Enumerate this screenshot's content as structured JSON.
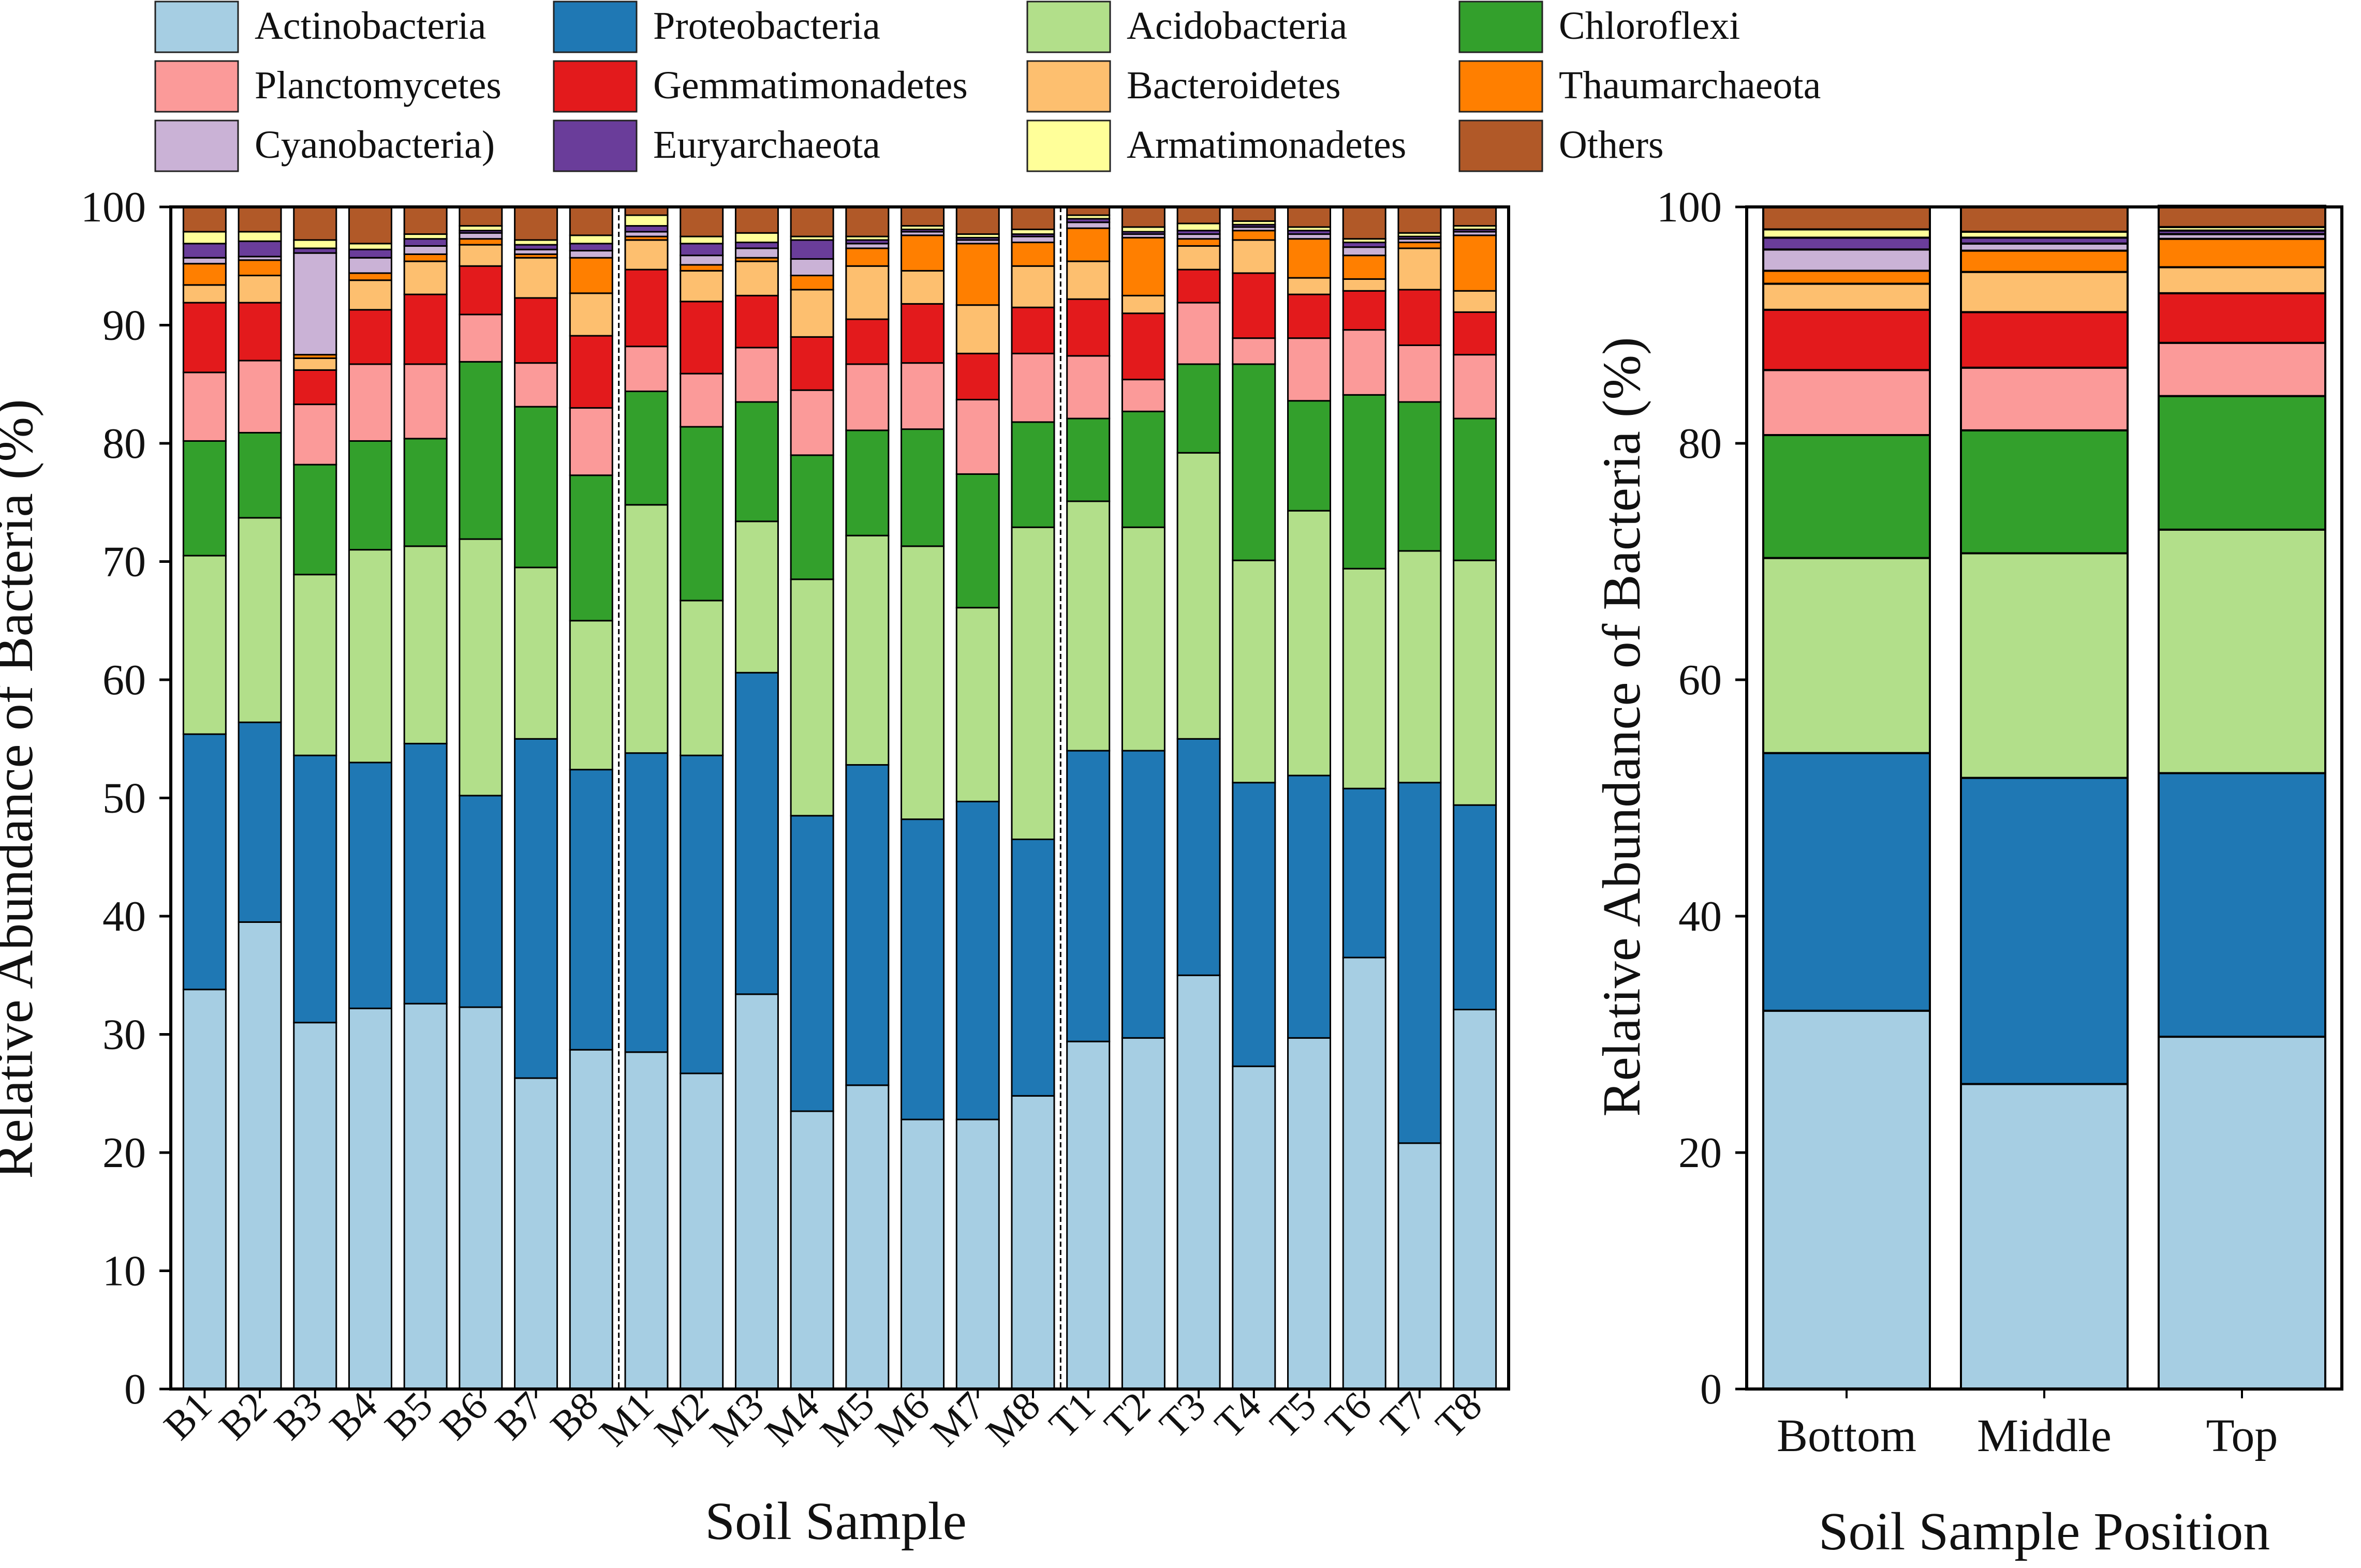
{
  "legend": [
    {
      "name": "Actinobacteria",
      "color": "#a6cee3"
    },
    {
      "name": "Proteobacteria",
      "color": "#1f78b4"
    },
    {
      "name": "Acidobacteria",
      "color": "#b2df8a"
    },
    {
      "name": "Chloroflexi",
      "color": "#33a02c"
    },
    {
      "name": "Planctomycetes",
      "color": "#fb9a99"
    },
    {
      "name": "Gemmatimonadetes",
      "color": "#e31a1c"
    },
    {
      "name": "Bacteroidetes",
      "color": "#fdbf6f"
    },
    {
      "name": "Thaumarchaeota",
      "color": "#ff7f00"
    },
    {
      "name": "Cyanobacteria)",
      "color": "#cab2d6"
    },
    {
      "name": "Euryarchaeota",
      "color": "#6a3d9a"
    },
    {
      "name": "Armatimonadetes",
      "color": "#ffff99"
    },
    {
      "name": "Others",
      "color": "#b15928"
    }
  ],
  "chart_data": [
    {
      "type": "bar",
      "stacked": true,
      "xlabel": "Soil Sample",
      "ylabel": "Relative Abundance of Bacteria (%)",
      "ylim": [
        0,
        100
      ],
      "yticks": [
        0,
        10,
        20,
        30,
        40,
        50,
        60,
        70,
        80,
        90,
        100
      ],
      "group_separators_after": [
        "B8",
        "M8"
      ],
      "categories": [
        "B1",
        "B2",
        "B3",
        "B4",
        "B5",
        "B6",
        "B7",
        "B8",
        "M1",
        "M2",
        "M3",
        "M4",
        "M5",
        "M6",
        "M7",
        "M8",
        "T1",
        "T2",
        "T3",
        "T4",
        "T5",
        "T6",
        "T7",
        "T8"
      ],
      "series": [
        {
          "name": "Actinobacteria",
          "values": [
            33.8,
            39.5,
            31.0,
            32.2,
            32.6,
            32.3,
            26.3,
            28.7,
            28.5,
            26.7,
            33.4,
            23.5,
            25.7,
            22.8,
            22.8,
            24.8,
            29.4,
            29.7,
            35.0,
            27.3,
            29.7,
            36.5,
            20.8,
            32.1
          ]
        },
        {
          "name": "Proteobacteria",
          "values": [
            21.6,
            16.9,
            22.6,
            20.8,
            22.0,
            17.9,
            28.7,
            23.7,
            25.3,
            26.9,
            27.2,
            25.0,
            27.1,
            25.4,
            26.9,
            21.7,
            24.6,
            24.3,
            20.0,
            24.0,
            22.2,
            14.3,
            30.5,
            17.3
          ]
        },
        {
          "name": "Acidobacteria",
          "values": [
            15.1,
            17.3,
            15.3,
            18.0,
            16.7,
            21.7,
            14.5,
            12.6,
            21.0,
            13.1,
            12.8,
            20.0,
            19.4,
            23.1,
            16.4,
            26.4,
            21.1,
            18.9,
            24.2,
            18.8,
            22.4,
            18.6,
            19.6,
            20.7
          ]
        },
        {
          "name": "Chloroflexi",
          "values": [
            9.7,
            7.2,
            9.3,
            9.2,
            9.1,
            15.0,
            13.6,
            12.3,
            9.6,
            14.7,
            10.1,
            10.5,
            8.9,
            9.9,
            11.3,
            8.9,
            7.0,
            9.8,
            7.5,
            16.6,
            9.3,
            14.7,
            12.6,
            12.0
          ]
        },
        {
          "name": "Planctomycetes",
          "values": [
            5.8,
            6.1,
            5.1,
            6.5,
            6.3,
            4.0,
            3.7,
            5.7,
            3.8,
            4.5,
            4.6,
            5.5,
            5.6,
            5.6,
            6.3,
            5.8,
            5.3,
            2.7,
            5.2,
            2.2,
            5.3,
            5.5,
            4.8,
            5.4
          ]
        },
        {
          "name": "Gemmatimonadetes",
          "values": [
            5.9,
            4.9,
            2.9,
            4.6,
            5.9,
            4.1,
            5.5,
            6.1,
            6.5,
            6.1,
            4.4,
            4.5,
            3.8,
            5.0,
            3.9,
            3.9,
            4.8,
            5.6,
            2.8,
            5.5,
            3.7,
            3.3,
            4.7,
            3.6
          ]
        },
        {
          "name": "Bacteroidetes",
          "values": [
            1.5,
            2.3,
            1.0,
            2.5,
            2.8,
            1.8,
            3.4,
            3.6,
            2.5,
            2.6,
            2.9,
            4.0,
            4.5,
            2.8,
            4.1,
            3.5,
            3.2,
            1.5,
            2.0,
            2.8,
            1.4,
            1.0,
            3.5,
            1.8
          ]
        },
        {
          "name": "Thaumarchaeota",
          "values": [
            1.8,
            1.3,
            0.3,
            0.6,
            0.6,
            0.5,
            0.3,
            3.0,
            0.3,
            0.5,
            0.3,
            1.2,
            1.5,
            3.0,
            5.2,
            2.0,
            2.8,
            4.9,
            0.6,
            0.8,
            3.3,
            2.0,
            0.5,
            4.7
          ]
        },
        {
          "name": "Cyanobacteria)",
          "values": [
            0.5,
            0.3,
            8.6,
            1.3,
            0.7,
            0.5,
            0.4,
            0.6,
            0.4,
            0.8,
            0.8,
            1.4,
            0.4,
            0.3,
            0.3,
            0.5,
            0.5,
            0.3,
            0.4,
            0.3,
            0.4,
            0.7,
            0.3,
            0.3
          ]
        },
        {
          "name": "Euryarchaeota",
          "values": [
            1.2,
            1.3,
            0.4,
            0.7,
            0.6,
            0.2,
            0.4,
            0.6,
            0.5,
            1.0,
            0.5,
            1.6,
            0.3,
            0.2,
            0.2,
            0.2,
            0.3,
            0.2,
            0.3,
            0.2,
            0.3,
            0.4,
            0.2,
            0.2
          ]
        },
        {
          "name": "Armatimonadetes",
          "values": [
            1.0,
            0.8,
            0.7,
            0.5,
            0.4,
            0.4,
            0.4,
            0.7,
            0.9,
            0.6,
            0.8,
            0.3,
            0.3,
            0.3,
            0.3,
            0.4,
            0.3,
            0.4,
            0.6,
            0.3,
            0.3,
            0.3,
            0.3,
            0.3
          ]
        },
        {
          "name": "Others",
          "values": [
            2.1,
            2.1,
            2.8,
            3.1,
            2.3,
            1.6,
            2.8,
            2.4,
            0.7,
            2.5,
            2.2,
            2.5,
            2.5,
            1.6,
            2.3,
            1.9,
            0.7,
            1.7,
            1.4,
            1.2,
            1.7,
            2.7,
            2.2,
            1.6
          ]
        }
      ]
    },
    {
      "type": "bar",
      "stacked": true,
      "xlabel": "Soil Sample Position",
      "ylabel": "Relative Abundance of Bacteria (%)",
      "ylim": [
        0,
        100
      ],
      "yticks": [
        0,
        20,
        40,
        60,
        80,
        100
      ],
      "categories": [
        "Bottom",
        "Middle",
        "Top"
      ],
      "series": [
        {
          "name": "Actinobacteria",
          "values": [
            32.0,
            25.8,
            29.8
          ]
        },
        {
          "name": "Proteobacteria",
          "values": [
            21.8,
            25.9,
            22.3
          ]
        },
        {
          "name": "Acidobacteria",
          "values": [
            16.5,
            19.0,
            20.6
          ]
        },
        {
          "name": "Chloroflexi",
          "values": [
            10.4,
            10.4,
            11.3
          ]
        },
        {
          "name": "Planctomycetes",
          "values": [
            5.5,
            5.3,
            4.5
          ]
        },
        {
          "name": "Gemmatimonadetes",
          "values": [
            5.1,
            4.7,
            4.2
          ]
        },
        {
          "name": "Bacteroidetes",
          "values": [
            2.2,
            3.4,
            2.2
          ]
        },
        {
          "name": "Thaumarchaeota",
          "values": [
            1.1,
            1.8,
            2.4
          ]
        },
        {
          "name": "Cyanobacteria)",
          "values": [
            1.8,
            0.6,
            0.4
          ]
        },
        {
          "name": "Euryarchaeota",
          "values": [
            1.0,
            0.5,
            0.3
          ]
        },
        {
          "name": "Armatimonadetes",
          "values": [
            0.7,
            0.5,
            0.3
          ]
        },
        {
          "name": "Others",
          "values": [
            1.9,
            2.1,
            1.8
          ]
        }
      ]
    }
  ]
}
